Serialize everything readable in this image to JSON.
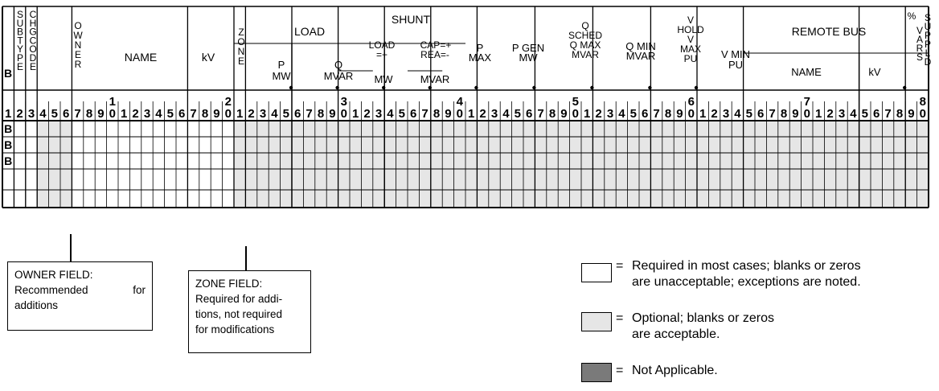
{
  "form": {
    "record_letter": "B",
    "headers": {
      "sub_type": "SUBTYPE",
      "change_code": "CHGCODE",
      "owner": "OWNER",
      "name": "NAME",
      "kv": "kV",
      "zone": "ZONE",
      "load": "LOAD",
      "load_p_1": "P",
      "load_p_2": "MW",
      "load_q_1": "Q",
      "load_q_2": "MVAR",
      "shunt": "SHUNT",
      "shunt_load_1": "LOAD",
      "shunt_load_2": "=+",
      "shunt_load_3": "MW",
      "shunt_cap_1": "CAP=+",
      "shunt_cap_2": "REA=-",
      "shunt_cap_3": "MVAR",
      "pmax_1": "P",
      "pmax_2": "MAX",
      "pgen_1": "P GEN",
      "pgen_2": "MW",
      "qsched_1": "Q",
      "qsched_2": "SCHED",
      "qsched_3": "Q MAX",
      "qsched_4": "MVAR",
      "qmin_1": "Q MIN",
      "qmin_2": "MVAR",
      "vhold_1": "V",
      "vhold_2": "HOLD",
      "vhold_3": "V",
      "vhold_4": "MAX",
      "vhold_5": "PU",
      "vmin_1": "V MIN",
      "vmin_2": "PU",
      "remote_bus": "REMOTE BUS",
      "remote_name": "NAME",
      "remote_kv": "kV",
      "pct_vars_1": "%",
      "pct_vars_2": "VARS",
      "pct_vars_3": "SUPPLD"
    },
    "decade_markers": [
      "1",
      "2",
      "3",
      "4",
      "5",
      "6",
      "7",
      "8"
    ],
    "column_digits": [
      "1",
      "2",
      "3",
      "4",
      "5",
      "6",
      "7",
      "8",
      "9",
      "0",
      "1",
      "2",
      "3",
      "4",
      "5",
      "6",
      "7",
      "8",
      "9",
      "0",
      "1",
      "2",
      "3",
      "4",
      "5",
      "6",
      "7",
      "8",
      "9",
      "0",
      "1",
      "2",
      "3",
      "4",
      "5",
      "6",
      "7",
      "8",
      "9",
      "0",
      "1",
      "2",
      "3",
      "4",
      "5",
      "6",
      "7",
      "8",
      "9",
      "0",
      "1",
      "2",
      "3",
      "4",
      "5",
      "6",
      "7",
      "8",
      "9",
      "0",
      "1",
      "2",
      "3",
      "4",
      "5",
      "6",
      "7",
      "8",
      "9",
      "0",
      "1",
      "2",
      "3",
      "4",
      "5",
      "6",
      "7",
      "8",
      "9",
      "0"
    ],
    "row_letters": [
      "B",
      "B",
      "B",
      ""
    ]
  },
  "notes": {
    "owner": {
      "line1": "OWNER FIELD:",
      "line2a": "Recommended",
      "line2b": "for",
      "line3": "additions"
    },
    "zone": {
      "line1": "ZONE FIELD:",
      "line2": "Required for addi-",
      "line3": "tions, not required",
      "line4": "for modifications"
    }
  },
  "legend": [
    {
      "symbol": "=",
      "line1": "Required in most cases; blanks or zeros",
      "line2": "are unacceptable; exceptions are noted.",
      "color": "#ffffff"
    },
    {
      "symbol": "=",
      "line1": "Optional; blanks or zeros",
      "line2": "are acceptable.",
      "color": "#e6e6e6"
    },
    {
      "symbol": "=",
      "line1": "Not Applicable.",
      "line2": "",
      "color": "#7a7a7a"
    }
  ],
  "colors": {
    "optional": "#e6e6e6",
    "not_applicable": "#7a7a7a",
    "required": "#ffffff"
  }
}
